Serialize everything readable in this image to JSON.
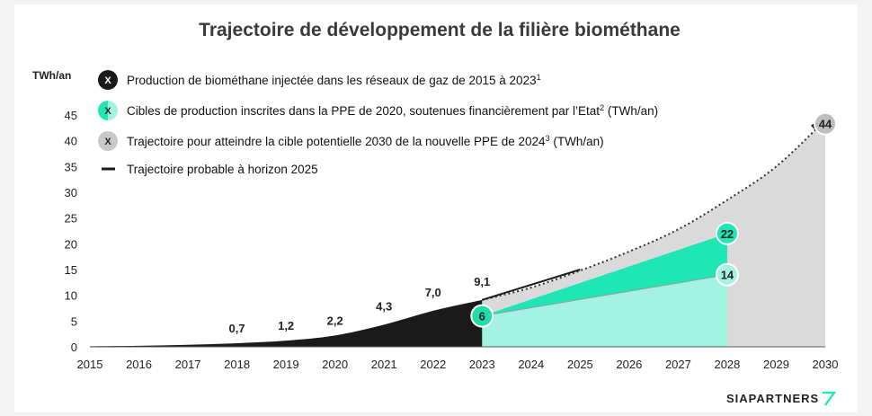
{
  "chart_data": {
    "type": "area",
    "title": "Trajectoire de développement de la filière biométhane",
    "ylabel": "TWh/an",
    "ylim": [
      0,
      45
    ],
    "yticks": [
      0,
      5,
      10,
      15,
      20,
      25,
      30,
      35,
      40,
      45
    ],
    "x": [
      2015,
      2016,
      2017,
      2018,
      2019,
      2020,
      2021,
      2022,
      2023,
      2024,
      2025,
      2026,
      2027,
      2028,
      2029,
      2030
    ],
    "xlim": [
      2015,
      2030
    ],
    "legend_position": "top-left",
    "legend": [
      {
        "symbol": "X",
        "text": "Production de biométhane injectée dans les réseaux de gaz de 2015 à 2023",
        "sup": "1"
      },
      {
        "symbol": "X",
        "text_pre": "Cibles de production inscrites dans la PPE de 2020, soutenues financièrement par l’Etat",
        "sup": "2",
        "text_post": " (TWh/an)"
      },
      {
        "symbol": "X",
        "text_pre": "Trajectoire pour atteindre la cible potentielle 2030 de la nouvelle PPE de 2024",
        "sup": "3",
        "text_post": " (TWh/an)"
      },
      {
        "symbol": "",
        "text": "Trajectoire probable à horizon 2025"
      }
    ],
    "series": [
      {
        "name": "Production de biométhane injectée dans les réseaux de gaz de 2015 à 2023",
        "color": "#1a1a1a",
        "x": [
          2015,
          2016,
          2017,
          2018,
          2019,
          2020,
          2021,
          2022,
          2023
        ],
        "values": [
          0.1,
          0.2,
          0.4,
          0.7,
          1.2,
          2.2,
          4.3,
          7.0,
          9.1
        ]
      },
      {
        "name": "Cibles de production inscrites dans la PPE de 2020 (bas)",
        "color": "#a3f3e2",
        "x": [
          2023,
          2028
        ],
        "values": [
          6,
          14
        ]
      },
      {
        "name": "Cibles de production inscrites dans la PPE de 2020 (haut)",
        "color": "#1ee6b4",
        "x": [
          2023,
          2028
        ],
        "values": [
          6,
          22
        ]
      },
      {
        "name": "Trajectoire pour atteindre la cible potentielle 2030 de la nouvelle PPE de 2024",
        "color": "#dadada",
        "x": [
          2023,
          2024,
          2025,
          2026,
          2027,
          2028,
          2029,
          2030
        ],
        "values": [
          9.1,
          11.5,
          14.8,
          18.5,
          22.8,
          28.5,
          35.0,
          44
        ]
      },
      {
        "name": "Trajectoire probable à horizon 2025",
        "color": "#1a1a1a",
        "x": [
          2023,
          2025
        ],
        "values": [
          9.1,
          15
        ]
      }
    ],
    "data_labels": [
      {
        "x": 2018,
        "y": 0.7,
        "text": "0,7"
      },
      {
        "x": 2019,
        "y": 1.2,
        "text": "1,2"
      },
      {
        "x": 2020,
        "y": 2.2,
        "text": "2,2"
      },
      {
        "x": 2021,
        "y": 4.3,
        "text": "4,3"
      },
      {
        "x": 2022,
        "y": 7.0,
        "text": "7,0"
      },
      {
        "x": 2023,
        "y": 9.1,
        "text": "9,1"
      }
    ],
    "bubbles": [
      {
        "x": 2023,
        "y": 6,
        "text": "6",
        "fill": "#22dca9"
      },
      {
        "x": 2028,
        "y": 14,
        "text": "14",
        "fill": "#a3f3e2"
      },
      {
        "x": 2028,
        "y": 22,
        "text": "22",
        "fill": "#1ee6b4"
      },
      {
        "x": 2030,
        "y": 44,
        "text": "44",
        "fill": "#bdbdbd"
      }
    ]
  },
  "brand": {
    "name": "SIAPARTNERS",
    "accent": "#1ee6b4"
  },
  "colors": {
    "black": "#1a1a1a",
    "mint_light": "#a3f3e2",
    "mint": "#1ee6b4",
    "grey": "#dadada"
  }
}
